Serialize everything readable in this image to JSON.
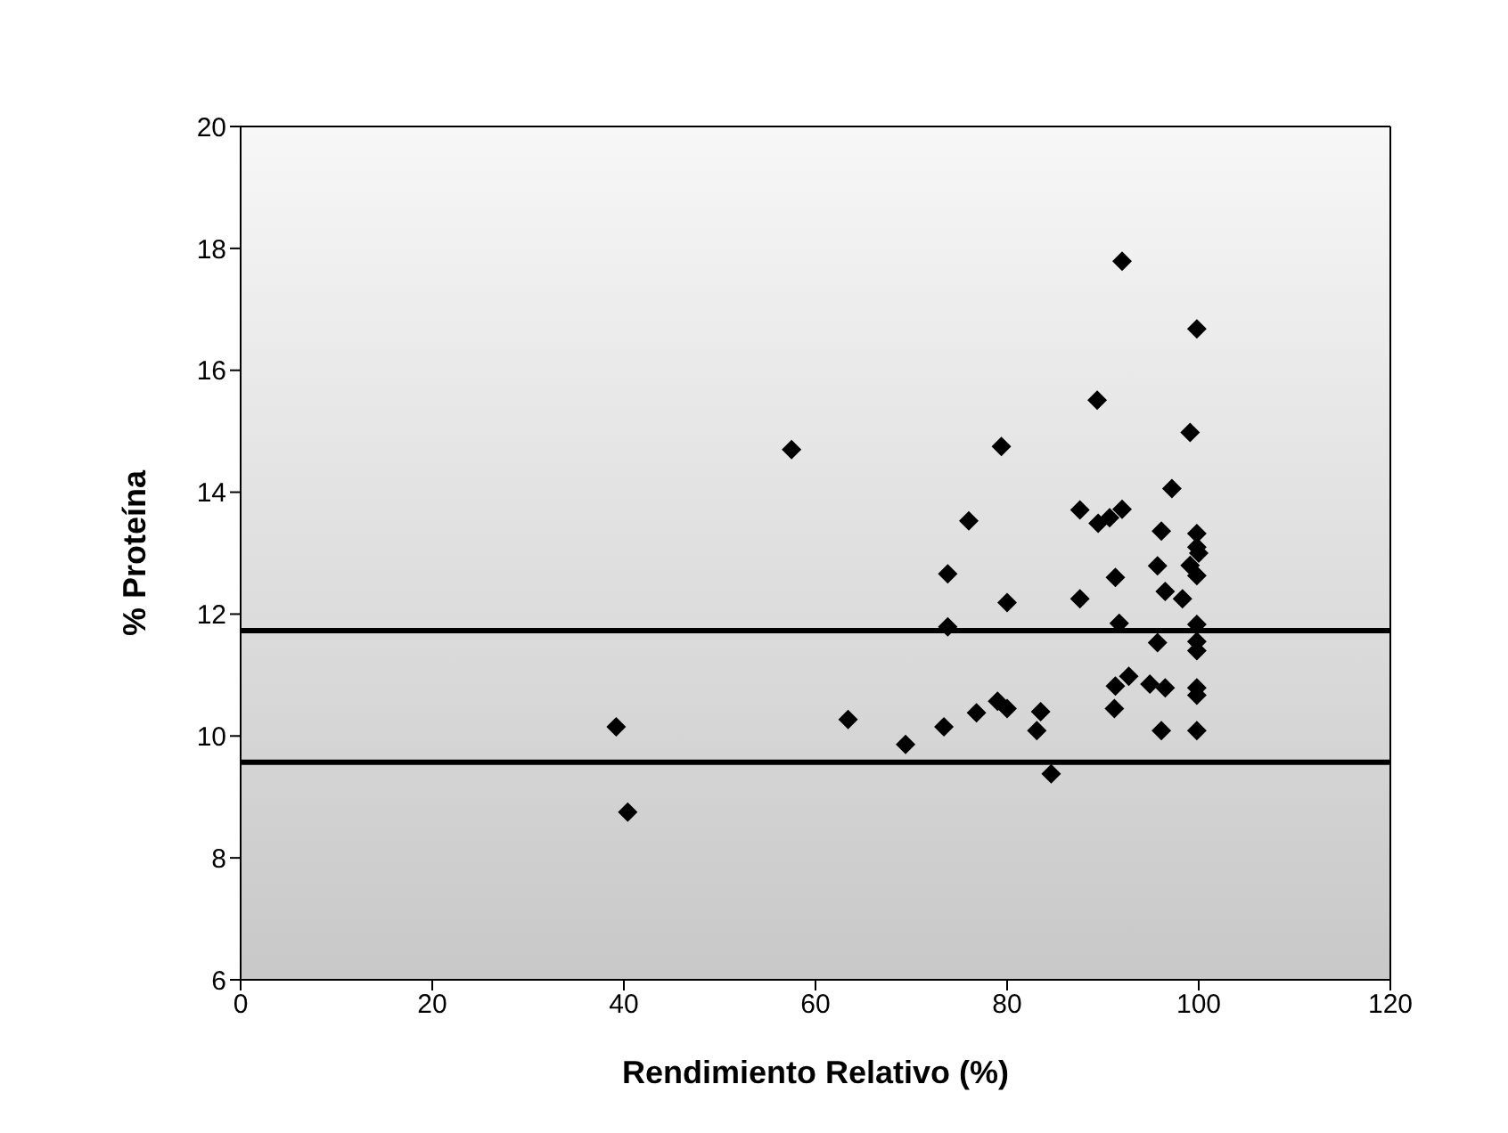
{
  "chart_data": {
    "type": "scatter",
    "xlabel": "Rendimiento Relativo (%)",
    "ylabel": "% Proteína",
    "marker": "diamond",
    "xlim": [
      0,
      120
    ],
    "xticks": [
      0,
      20,
      40,
      60,
      80,
      100,
      120
    ],
    "ylim": [
      6,
      20
    ],
    "yticks": [
      6,
      8,
      10,
      12,
      14,
      16,
      18,
      20
    ],
    "series": [
      {
        "color": "#000000",
        "x": [
          57.5,
          79.4,
          76.0,
          73.8,
          80.0,
          73.8,
          39.2,
          63.4,
          69.4,
          73.4,
          76.8,
          79.0,
          80.0,
          40.4,
          92.0,
          99.8,
          89.4,
          99.1,
          97.2,
          87.6,
          89.5,
          90.7,
          92.0,
          96.1,
          99.8,
          99.8,
          100,
          99.1,
          95.7,
          99.8,
          91.3,
          87.6,
          96.5,
          98.3,
          91.7,
          99.8,
          95.7,
          99.8,
          99.8,
          92.7,
          91.3,
          94.9,
          96.5,
          99.8,
          99.8,
          91.2,
          96.1,
          99.8,
          83.5,
          83.1,
          84.6
        ],
        "values": [
          14.7,
          14.75,
          13.53,
          12.66,
          12.19,
          11.79,
          10.15,
          10.27,
          9.86,
          10.15,
          10.38,
          10.57,
          10.45,
          8.75,
          17.79,
          16.68,
          15.51,
          14.98,
          14.06,
          13.71,
          13.49,
          13.58,
          13.72,
          13.36,
          13.32,
          13.1,
          13.0,
          12.8,
          12.79,
          12.63,
          12.6,
          12.25,
          12.37,
          12.25,
          11.85,
          11.83,
          11.53,
          11.55,
          11.4,
          10.98,
          10.82,
          10.85,
          10.79,
          10.79,
          10.67,
          10.45,
          10.09,
          10.09,
          10.4,
          10.09,
          9.38
        ]
      }
    ],
    "ref_lines": [
      {
        "axis": "y",
        "value": 11.73,
        "color": "#000000"
      },
      {
        "axis": "y",
        "value": 9.57,
        "color": "#000000"
      }
    ]
  }
}
